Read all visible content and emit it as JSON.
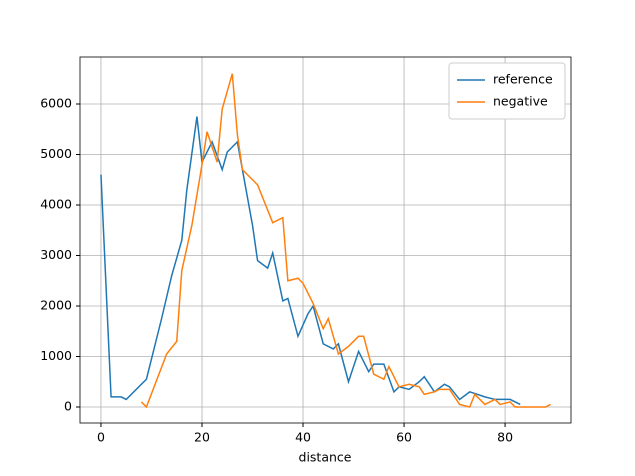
{
  "chart_data": {
    "type": "line",
    "xlabel": "distance",
    "xlim": [
      -4.15,
      93.05
    ],
    "ylim": [
      -317,
      6931
    ],
    "xticks": [
      0,
      20,
      40,
      60,
      80
    ],
    "yticks": [
      0,
      1000,
      2000,
      3000,
      4000,
      5000,
      6000
    ],
    "grid": true,
    "legend": "upper right",
    "series": [
      {
        "name": "reference",
        "color": "#1f77b4",
        "x": [
          0,
          2,
          4,
          5,
          9,
          12,
          14,
          16,
          17,
          19,
          20,
          22,
          24,
          25,
          27,
          28,
          30,
          31,
          33,
          34,
          36,
          37,
          39,
          41,
          42,
          44,
          46,
          47,
          49,
          51,
          53,
          54,
          56,
          58,
          59,
          61,
          63,
          64,
          66,
          68,
          69,
          71,
          73,
          76,
          78,
          80,
          81,
          83
        ],
        "values": [
          4600,
          200,
          200,
          150,
          550,
          1750,
          2600,
          3300,
          4300,
          5750,
          4850,
          5250,
          4700,
          5050,
          5250,
          4700,
          3600,
          2900,
          2750,
          3050,
          2100,
          2150,
          1400,
          1850,
          2000,
          1250,
          1150,
          1250,
          500,
          1100,
          700,
          850,
          850,
          300,
          400,
          350,
          500,
          600,
          300,
          450,
          400,
          150,
          300,
          200,
          150,
          150,
          150,
          50
        ]
      },
      {
        "name": "negative",
        "color": "#ff7f0e",
        "x": [
          8,
          9,
          13,
          15,
          16,
          18,
          20,
          21,
          23,
          24,
          26,
          27,
          28,
          30,
          31,
          33,
          34,
          36,
          37,
          39,
          40,
          42,
          44,
          45,
          47,
          49,
          51,
          52,
          54,
          56,
          57,
          59,
          61,
          63,
          64,
          66,
          67,
          69,
          71,
          73,
          74,
          76,
          78,
          79,
          81,
          82,
          86,
          88,
          89
        ],
        "values": [
          100,
          0,
          1050,
          1300,
          2700,
          3600,
          4800,
          5450,
          4850,
          5900,
          6600,
          5400,
          4700,
          4500,
          4400,
          3900,
          3650,
          3750,
          2500,
          2550,
          2450,
          2050,
          1550,
          1750,
          1050,
          1200,
          1400,
          1400,
          650,
          550,
          800,
          400,
          450,
          400,
          250,
          300,
          350,
          350,
          50,
          0,
          250,
          50,
          150,
          50,
          100,
          0,
          0,
          0,
          50
        ]
      }
    ]
  }
}
